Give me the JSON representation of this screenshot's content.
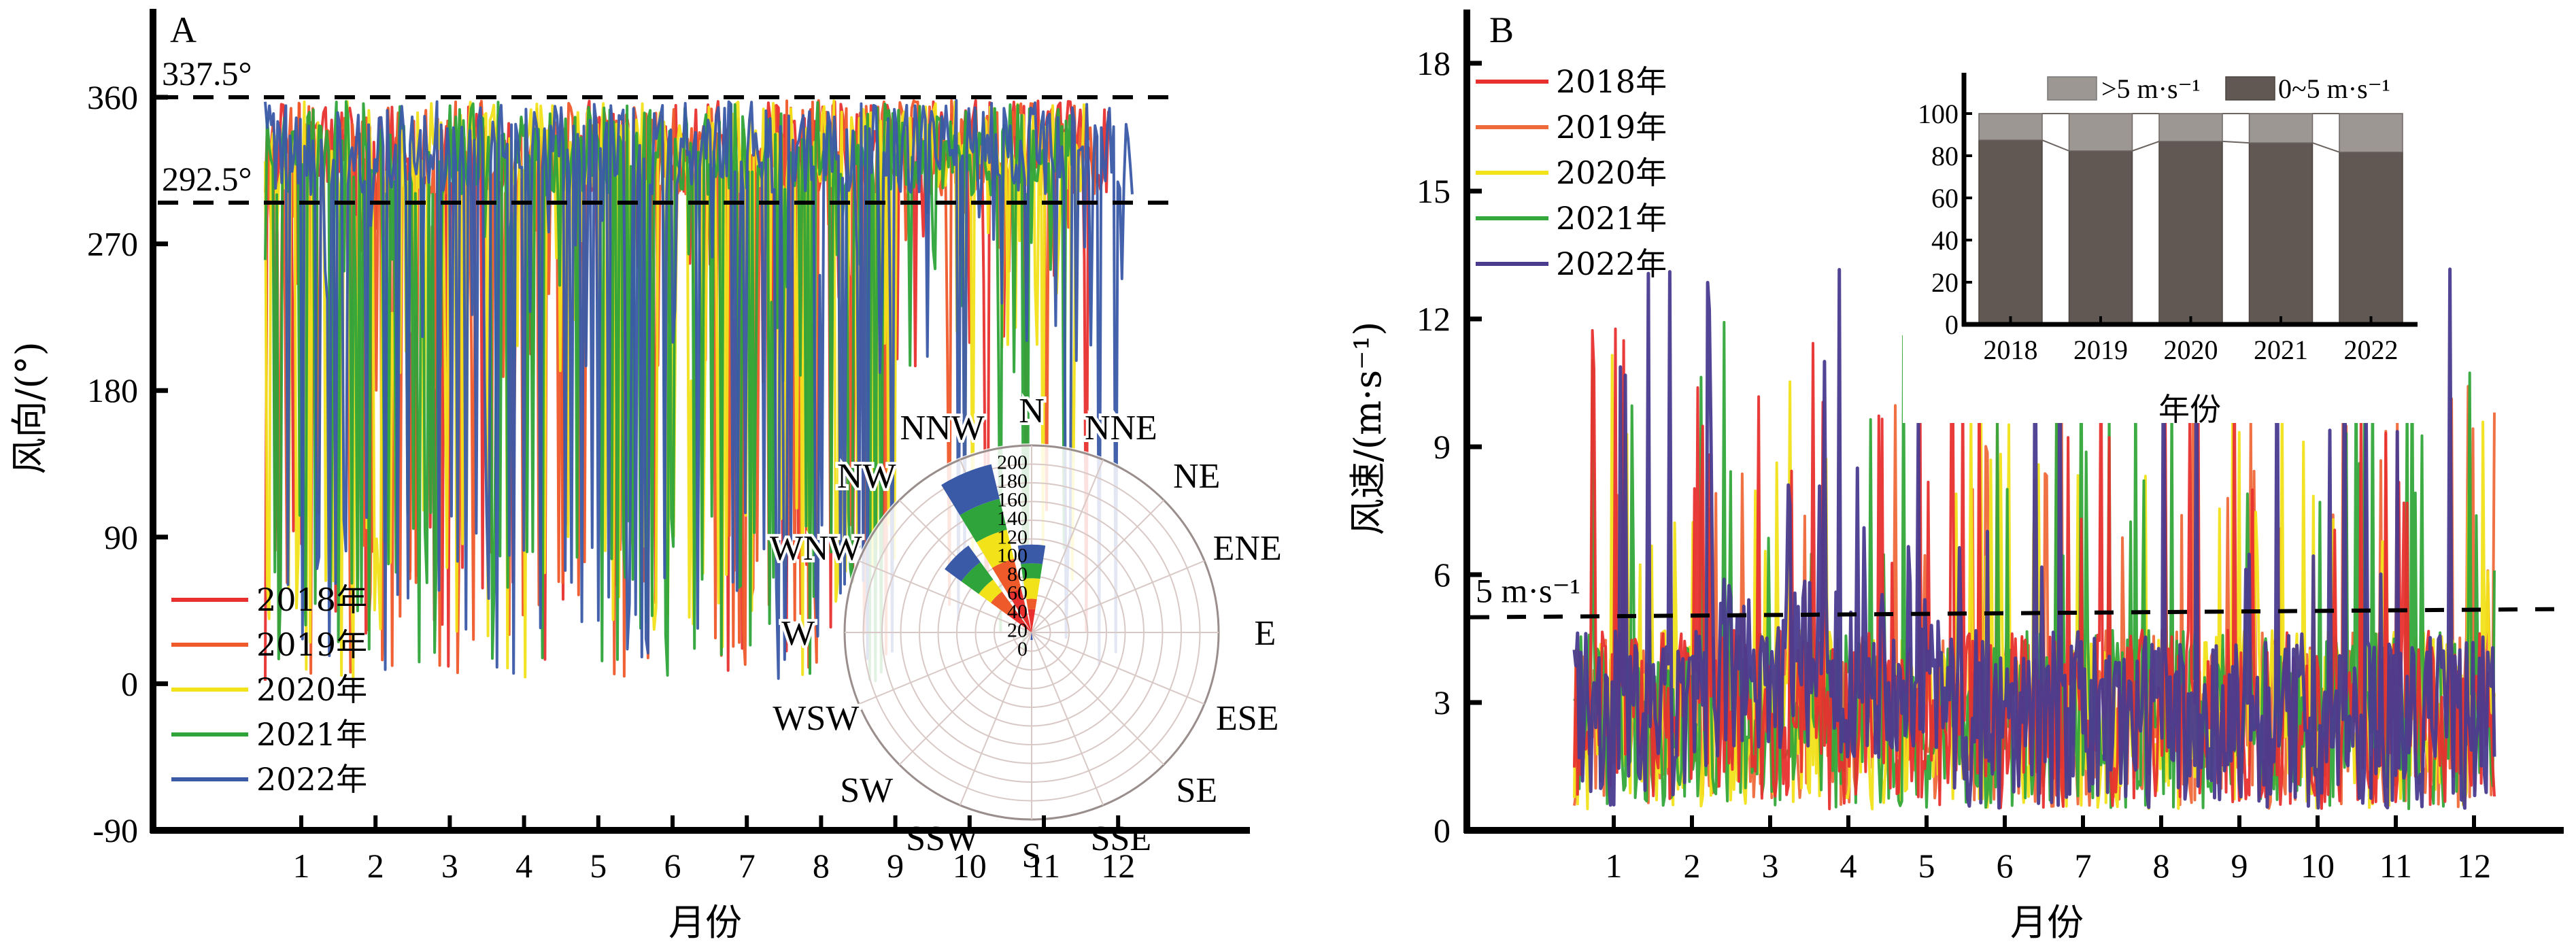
{
  "figure": {
    "panels": [
      "A",
      "B"
    ]
  },
  "chart_data": [
    {
      "panel": "A",
      "type": "line",
      "title": "",
      "panel_label": "A",
      "xlabel": "月份",
      "ylabel": "风向/(°)",
      "x_ticks": [
        "1",
        "2",
        "3",
        "4",
        "5",
        "6",
        "7",
        "8",
        "9",
        "10",
        "11",
        "12"
      ],
      "y_ticks": [
        360,
        270,
        180,
        90,
        0,
        -90
      ],
      "ylim": [
        -90,
        380
      ],
      "xlim": [
        0,
        13.5
      ],
      "reference_lines": [
        {
          "value": 337.5,
          "label": "337.5°",
          "style": "dashed"
        },
        {
          "value": 292.5,
          "label": "292.5°",
          "style": "dashed"
        }
      ],
      "series": [
        {
          "name": "2018年",
          "color": "#e8302e",
          "typical_range": [
            292.5,
            360
          ],
          "dips_to": 0
        },
        {
          "name": "2019年",
          "color": "#ef5a2a",
          "typical_range": [
            292.5,
            360
          ],
          "dips_to": 0
        },
        {
          "name": "2020年",
          "color": "#f2e21a",
          "typical_range": [
            292.5,
            360
          ],
          "dips_to": 0
        },
        {
          "name": "2021年",
          "color": "#2ea43a",
          "typical_range": [
            292.5,
            360
          ],
          "dips_to": 0
        },
        {
          "name": "2022年",
          "color": "#3a5aa8",
          "typical_range": [
            292.5,
            360
          ],
          "dips_to": 0
        }
      ],
      "legend": {
        "position": "bottom-left"
      },
      "inset_rose": {
        "type": "polar-bar",
        "directions": [
          "N",
          "NNE",
          "NE",
          "ENE",
          "E",
          "ESE",
          "SE",
          "SSE",
          "S",
          "SSW",
          "SW",
          "WSW",
          "W",
          "WNW",
          "NW",
          "NNW"
        ],
        "radial_ticks": [
          0,
          20,
          40,
          60,
          80,
          100,
          120,
          140,
          160,
          180,
          200
        ],
        "rmax": 200,
        "sectors": [
          {
            "direction": "N",
            "stack": [
              {
                "series": "2018年",
                "value": 25
              },
              {
                "series": "2019年",
                "value": 11
              },
              {
                "series": "2020年",
                "value": 22
              },
              {
                "series": "2021年",
                "value": 16
              },
              {
                "series": "2022年",
                "value": 20
              }
            ]
          },
          {
            "direction": "NW",
            "stack": [
              {
                "series": "2018年",
                "value": 30
              },
              {
                "series": "2019年",
                "value": 24
              },
              {
                "series": "2020年",
                "value": 16
              },
              {
                "series": "2021年",
                "value": 23
              },
              {
                "series": "2022年",
                "value": 22
              }
            ]
          },
          {
            "direction": "NNW",
            "stack": [
              {
                "series": "2018年",
                "value": 48
              },
              {
                "series": "2019年",
                "value": 33
              },
              {
                "series": "2020年",
                "value": 32
              },
              {
                "series": "2021年",
                "value": 34
              },
              {
                "series": "2022年",
                "value": 38
              }
            ]
          },
          {
            "direction": "S",
            "stack": [
              {
                "series": "2022年",
                "value": 8
              }
            ]
          }
        ]
      }
    },
    {
      "panel": "B",
      "type": "line",
      "title": "",
      "panel_label": "B",
      "xlabel": "月份",
      "ylabel": "风速/(m·s⁻¹)",
      "x_ticks": [
        "1",
        "2",
        "3",
        "4",
        "5",
        "6",
        "7",
        "8",
        "9",
        "10",
        "11",
        "12"
      ],
      "y_ticks": [
        18,
        15,
        12,
        9,
        6,
        3,
        0
      ],
      "ylim": [
        0,
        19.5
      ],
      "xlim": [
        0,
        13.5
      ],
      "reference_lines": [
        {
          "value": 5,
          "label": "5 m·s⁻¹",
          "style": "dashed"
        }
      ],
      "series": [
        {
          "name": "2018年",
          "color": "#e8302e",
          "typical_range": [
            0.3,
            7
          ],
          "peak": 11.8
        },
        {
          "name": "2019年",
          "color": "#ef6a3a",
          "typical_range": [
            0.3,
            7
          ],
          "peak": 11.0
        },
        {
          "name": "2020年",
          "color": "#f2e21a",
          "typical_range": [
            0.3,
            7
          ],
          "peak": 11.6
        },
        {
          "name": "2021年",
          "color": "#34a83a",
          "typical_range": [
            0.3,
            7
          ],
          "peak": 12.3
        },
        {
          "name": "2022年",
          "color": "#4a3b8f",
          "typical_range": [
            0.3,
            7
          ],
          "peak": 13.4
        }
      ],
      "legend": {
        "position": "top-left"
      },
      "inset_bar": {
        "type": "bar",
        "stacked": true,
        "categories": [
          "2018",
          "2019",
          "2020",
          "2021",
          "2022"
        ],
        "xlabel": "年份",
        "ylabel": "",
        "y_ticks": [
          0,
          20,
          40,
          60,
          80,
          100
        ],
        "ylim": [
          0,
          120
        ],
        "series": [
          {
            "name": "0~5 m·s⁻¹",
            "color": "#615853",
            "values": [
              87.4,
              82.3,
              86.8,
              86.1,
              81.7
            ]
          },
          {
            "name": ">5 m·s⁻¹",
            "color": "#9d9793",
            "values": [
              12.6,
              17.7,
              13.2,
              13.9,
              18.3
            ]
          }
        ],
        "legend": {
          "position": "top",
          "labels": [
            ">5 m·s⁻¹",
            "0~5 m·s⁻¹"
          ]
        }
      }
    }
  ]
}
